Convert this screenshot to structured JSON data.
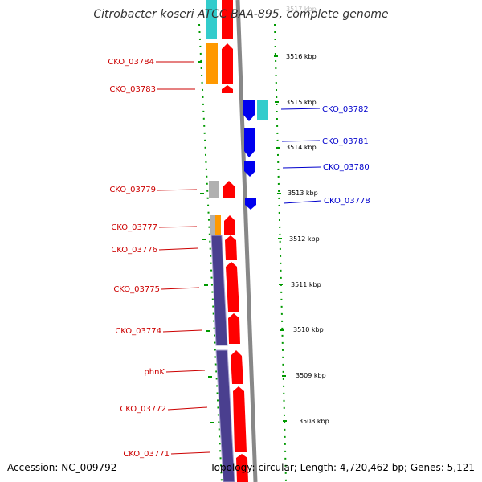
{
  "title": "Citrobacter koseri ATCC BAA-895, complete genome",
  "accession": "Accession: NC_009792",
  "stats": "Topology: circular; Length: 4,720,462 bp; Genes: 5,121",
  "top_cut_label": "3517 kbp",
  "ticks": [
    "3516 kbp",
    "3515 kbp",
    "3514 kbp",
    "3513 kbp",
    "3512 kbp",
    "3511 kbp",
    "3510 kbp",
    "3509 kbp",
    "3508 kbp"
  ],
  "left_genes": [
    "CKO_03784",
    "CKO_03783",
    "CKO_03779",
    "CKO_03777",
    "CKO_03776",
    "CKO_03775",
    "CKO_03774",
    "phnK",
    "CKO_03772",
    "CKO_03771"
  ],
  "right_genes": [
    "CKO_03782",
    "CKO_03781",
    "CKO_03780",
    "CKO_03778"
  ],
  "colors": {
    "forward_cds": "#ff0000",
    "reverse_cds": "#0000ee",
    "left_label": "#cc0000",
    "right_label": "#0000cc",
    "orange": "#ff9900",
    "cyan": "#33cccc",
    "gray": "#b0b0b0",
    "purple": "#4a3f8f",
    "backbone": "#888888",
    "dots": "#009900"
  }
}
